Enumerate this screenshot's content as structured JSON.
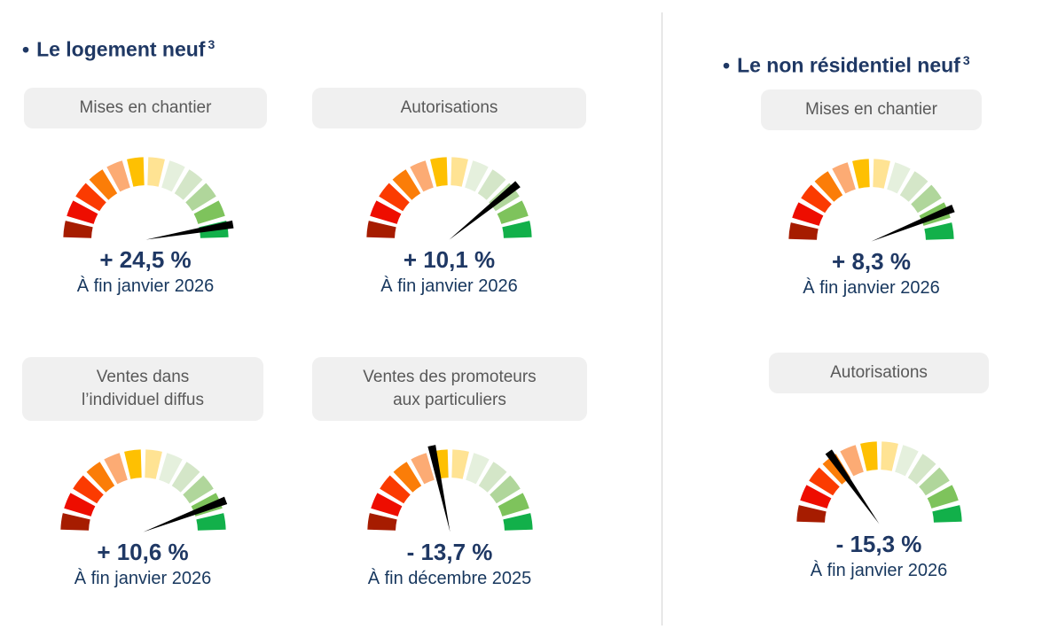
{
  "colors": {
    "navy_title": "#1f3864",
    "navy_value": "#1f3864",
    "navy_date": "#17375e",
    "label_text": "#595959",
    "label_bg": "#f0f0f0",
    "divider": "#d4d4d4",
    "needle": "#000000"
  },
  "gauge_palette": [
    "#a61c00",
    "#ee0d00",
    "#fb3b01",
    "#fb7d08",
    "#fcab74",
    "#fec002",
    "#ffe393",
    "#e5f0dd",
    "#d4e6c8",
    "#b0d69b",
    "#7ec35c",
    "#12b04a"
  ],
  "sections": [
    {
      "bullet": "•",
      "title": "Le logement neuf",
      "footnote": "3",
      "gauges": [
        {
          "label": "Mises en chantier",
          "value": "+ 24,5 %",
          "date": "À fin janvier 2026",
          "needle_angle_deg": 10
        },
        {
          "label": "Autorisations",
          "value": "+ 10,1 %",
          "date": "À fin janvier 2026",
          "needle_angle_deg": 39
        },
        {
          "label": "Ventes dans\nl’individuel diffus",
          "value": "+ 10,6 %",
          "date": "À fin janvier 2026",
          "needle_angle_deg": 21
        },
        {
          "label": "Ventes des promoteurs\naux particuliers",
          "value": "- 13,7 %",
          "date": "À fin décembre 2025",
          "needle_angle_deg": 102
        }
      ]
    },
    {
      "bullet": "•",
      "title": "Le non résidentiel neuf",
      "footnote": "3",
      "gauges": [
        {
          "label": "Mises en chantier",
          "value": "+ 8,3 %",
          "date": "À fin janvier 2026",
          "needle_angle_deg": 22
        },
        {
          "label": "Autorisations",
          "value": "- 15,3 %",
          "date": "À fin janvier 2026",
          "needle_angle_deg": 125
        }
      ]
    }
  ],
  "chart_data": [
    {
      "type": "gauge",
      "section": "Le logement neuf",
      "title": "Mises en chantier",
      "value_pct": 24.5,
      "value_label": "+ 24,5 %",
      "period": "À fin janvier 2026",
      "needle_angle_deg": 10,
      "segments": 12,
      "arc_span_deg": 180,
      "palette_order": "dark-red (left/negative) to green (right/positive)"
    },
    {
      "type": "gauge",
      "section": "Le logement neuf",
      "title": "Autorisations",
      "value_pct": 10.1,
      "value_label": "+ 10,1 %",
      "period": "À fin janvier 2026",
      "needle_angle_deg": 39,
      "segments": 12,
      "arc_span_deg": 180,
      "palette_order": "dark-red (left/negative) to green (right/positive)"
    },
    {
      "type": "gauge",
      "section": "Le logement neuf",
      "title": "Ventes dans l’individuel diffus",
      "value_pct": 10.6,
      "value_label": "+ 10,6 %",
      "period": "À fin janvier 2026",
      "needle_angle_deg": 21,
      "segments": 12,
      "arc_span_deg": 180,
      "palette_order": "dark-red (left/negative) to green (right/positive)"
    },
    {
      "type": "gauge",
      "section": "Le logement neuf",
      "title": "Ventes des promoteurs aux particuliers",
      "value_pct": -13.7,
      "value_label": "- 13,7 %",
      "period": "À fin décembre 2025",
      "needle_angle_deg": 102,
      "segments": 12,
      "arc_span_deg": 180,
      "palette_order": "dark-red (left/negative) to green (right/positive)"
    },
    {
      "type": "gauge",
      "section": "Le non résidentiel neuf",
      "title": "Mises en chantier",
      "value_pct": 8.3,
      "value_label": "+ 8,3 %",
      "period": "À fin janvier 2026",
      "needle_angle_deg": 22,
      "segments": 12,
      "arc_span_deg": 180,
      "palette_order": "dark-red (left/negative) to green (right/positive)"
    },
    {
      "type": "gauge",
      "section": "Le non résidentiel neuf",
      "title": "Autorisations",
      "value_pct": -15.3,
      "value_label": "- 15,3 %",
      "period": "À fin janvier 2026",
      "needle_angle_deg": 125,
      "segments": 12,
      "arc_span_deg": 180,
      "palette_order": "dark-red (left/negative) to green (right/positive)"
    }
  ]
}
